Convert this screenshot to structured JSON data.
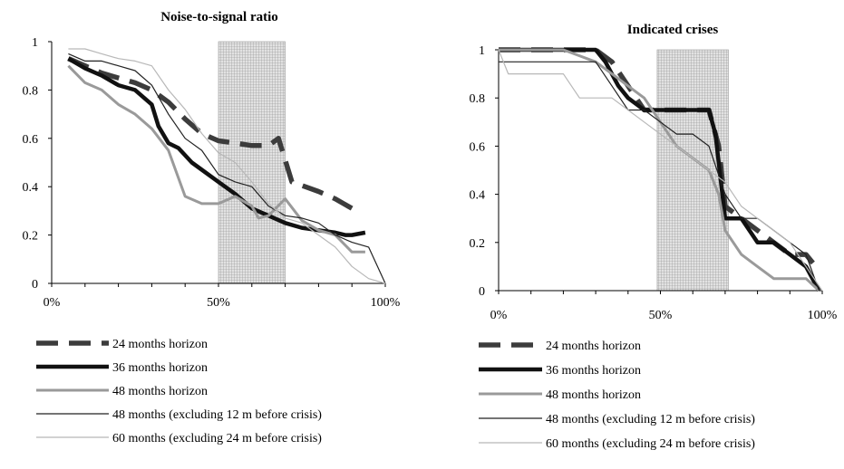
{
  "chart_data": [
    {
      "type": "line",
      "title": "Noise-to-signal ratio",
      "xlabel": "",
      "ylabel": "",
      "xlim": [
        0,
        100
      ],
      "ylim": [
        0,
        1
      ],
      "x_tick_labels": [
        "0%",
        "50%",
        "100%"
      ],
      "y_tick_labels": [
        "0",
        "0.2",
        "0.4",
        "0.6",
        "0.8",
        "1"
      ],
      "shaded_region": [
        50,
        70
      ],
      "grid": false,
      "series": [
        {
          "name": "24 months horizon",
          "style": "dashed-thick",
          "color": "#3c3c3c",
          "x": [
            5,
            10,
            15,
            20,
            25,
            30,
            35,
            40,
            45,
            50,
            55,
            60,
            65,
            68,
            72,
            76,
            80,
            85,
            90
          ],
          "y": [
            0.93,
            0.9,
            0.87,
            0.85,
            0.83,
            0.8,
            0.75,
            0.68,
            0.62,
            0.59,
            0.58,
            0.57,
            0.57,
            0.6,
            0.42,
            0.4,
            0.38,
            0.35,
            0.31
          ]
        },
        {
          "name": "36 months horizon",
          "style": "solid-thick",
          "color": "#111111",
          "x": [
            5,
            10,
            15,
            20,
            25,
            30,
            32,
            35,
            38,
            42,
            45,
            50,
            55,
            60,
            65,
            70,
            75,
            80,
            85,
            88,
            90,
            94
          ],
          "y": [
            0.93,
            0.89,
            0.86,
            0.82,
            0.8,
            0.74,
            0.65,
            0.58,
            0.56,
            0.5,
            0.47,
            0.42,
            0.37,
            0.31,
            0.28,
            0.25,
            0.23,
            0.22,
            0.21,
            0.2,
            0.2,
            0.21
          ]
        },
        {
          "name": "48 months horizon",
          "style": "solid-medium",
          "color": "#9a9a9a",
          "x": [
            5,
            10,
            15,
            20,
            25,
            30,
            35,
            40,
            45,
            50,
            55,
            60,
            62,
            65,
            70,
            75,
            80,
            85,
            90,
            94
          ],
          "y": [
            0.9,
            0.83,
            0.8,
            0.74,
            0.7,
            0.64,
            0.55,
            0.36,
            0.33,
            0.33,
            0.36,
            0.32,
            0.27,
            0.28,
            0.35,
            0.26,
            0.22,
            0.2,
            0.13,
            0.13
          ]
        },
        {
          "name": "48 months (excluding 12 m before crisis)",
          "style": "solid-thin",
          "color": "#222222",
          "x": [
            5,
            10,
            15,
            20,
            25,
            30,
            35,
            40,
            45,
            50,
            55,
            60,
            65,
            70,
            75,
            80,
            85,
            90,
            95,
            100
          ],
          "y": [
            0.95,
            0.92,
            0.92,
            0.9,
            0.88,
            0.82,
            0.7,
            0.6,
            0.55,
            0.45,
            0.42,
            0.4,
            0.32,
            0.28,
            0.27,
            0.25,
            0.2,
            0.17,
            0.15,
            0
          ]
        },
        {
          "name": "60 months (excluding 24 m before crisis)",
          "style": "solid-thin",
          "color": "#b8b8b8",
          "x": [
            5,
            10,
            15,
            20,
            25,
            30,
            35,
            40,
            45,
            50,
            55,
            60,
            65,
            70,
            75,
            80,
            85,
            90,
            95,
            100
          ],
          "y": [
            0.97,
            0.97,
            0.95,
            0.93,
            0.92,
            0.9,
            0.8,
            0.72,
            0.62,
            0.54,
            0.5,
            0.42,
            0.33,
            0.27,
            0.25,
            0.2,
            0.15,
            0.07,
            0.02,
            0
          ]
        }
      ]
    },
    {
      "type": "line",
      "title": "Indicated crises",
      "xlabel": "",
      "ylabel": "",
      "xlim": [
        0,
        100
      ],
      "ylim": [
        0,
        1
      ],
      "x_tick_labels": [
        "0%",
        "50%",
        "100%"
      ],
      "y_tick_labels": [
        "0",
        "0.2",
        "0.4",
        "0.6",
        "0.8",
        "1"
      ],
      "shaded_region": [
        49,
        71
      ],
      "grid": false,
      "series": [
        {
          "name": "24 months horizon",
          "style": "dashed-thick",
          "color": "#3c3c3c",
          "x": [
            0,
            10,
            20,
            30,
            35,
            40,
            45,
            50,
            55,
            60,
            65,
            68,
            70,
            75,
            80,
            85,
            90,
            95,
            98
          ],
          "y": [
            1.0,
            1.0,
            1.0,
            1.0,
            0.95,
            0.85,
            0.75,
            0.75,
            0.75,
            0.75,
            0.75,
            0.6,
            0.35,
            0.3,
            0.25,
            0.2,
            0.15,
            0.15,
            0.1
          ]
        },
        {
          "name": "36 months horizon",
          "style": "solid-thick",
          "color": "#111111",
          "x": [
            0,
            10,
            20,
            30,
            33,
            37,
            40,
            45,
            50,
            55,
            60,
            65,
            67,
            70,
            75,
            80,
            85,
            90,
            95,
            99
          ],
          "y": [
            1.0,
            1.0,
            1.0,
            1.0,
            0.95,
            0.85,
            0.8,
            0.75,
            0.75,
            0.75,
            0.75,
            0.75,
            0.65,
            0.3,
            0.3,
            0.2,
            0.2,
            0.15,
            0.1,
            0
          ]
        },
        {
          "name": "48 months horizon",
          "style": "solid-medium",
          "color": "#9a9a9a",
          "x": [
            0,
            10,
            20,
            30,
            35,
            40,
            45,
            50,
            55,
            60,
            65,
            68,
            70,
            75,
            80,
            85,
            90,
            95,
            99
          ],
          "y": [
            1.0,
            1.0,
            1.0,
            0.95,
            0.9,
            0.85,
            0.8,
            0.7,
            0.6,
            0.55,
            0.5,
            0.4,
            0.25,
            0.15,
            0.1,
            0.05,
            0.05,
            0.05,
            0
          ]
        },
        {
          "name": "48 months (excluding 12 m before crisis)",
          "style": "solid-thin",
          "color": "#222222",
          "x": [
            0,
            10,
            20,
            30,
            35,
            40,
            45,
            50,
            55,
            60,
            65,
            70,
            75,
            80,
            85,
            90,
            95,
            99
          ],
          "y": [
            0.95,
            0.95,
            0.95,
            0.95,
            0.85,
            0.75,
            0.75,
            0.7,
            0.65,
            0.65,
            0.6,
            0.4,
            0.3,
            0.3,
            0.25,
            0.2,
            0.15,
            0
          ]
        },
        {
          "name": "60 months (excluding 24 m before crisis)",
          "style": "solid-thin",
          "color": "#b8b8b8",
          "x": [
            0,
            3,
            10,
            20,
            25,
            30,
            35,
            40,
            45,
            50,
            55,
            60,
            65,
            70,
            75,
            80,
            85,
            90,
            95,
            100
          ],
          "y": [
            1.0,
            0.9,
            0.9,
            0.9,
            0.8,
            0.8,
            0.8,
            0.75,
            0.7,
            0.65,
            0.6,
            0.55,
            0.5,
            0.45,
            0.35,
            0.3,
            0.25,
            0.2,
            0.1,
            0
          ]
        }
      ]
    }
  ]
}
